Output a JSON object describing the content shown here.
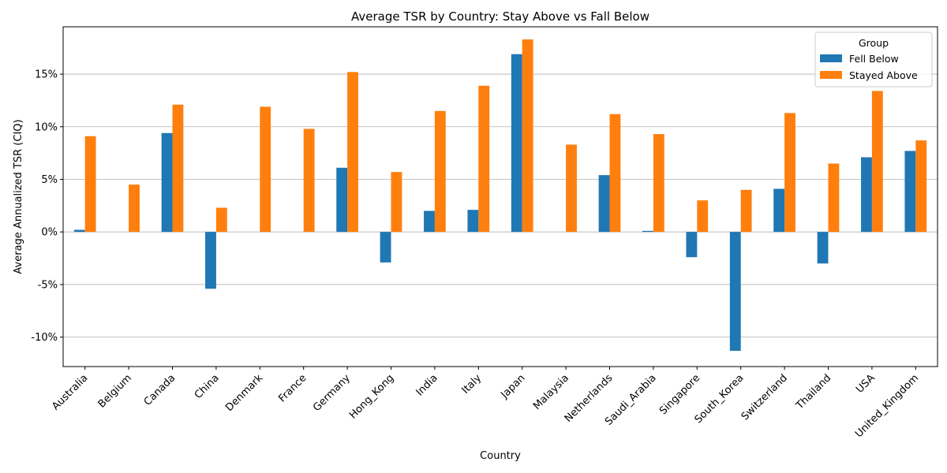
{
  "chart_data": {
    "type": "bar",
    "title": "Average TSR by Country: Stay Above vs Fall Below",
    "xlabel": "Country",
    "ylabel": "Average Annualized TSR (CIQ)",
    "categories": [
      "Australia",
      "Belgium",
      "Canada",
      "China",
      "Denmark",
      "France",
      "Germany",
      "Hong_Kong",
      "India",
      "Italy",
      "Japan",
      "Malaysia",
      "Netherlands",
      "Saudi_Arabia",
      "Singapore",
      "South_Korea",
      "Switzerland",
      "Thailand",
      "USA",
      "United_Kingdom"
    ],
    "series": [
      {
        "name": "Fell Below",
        "color": "#1f77b4",
        "values": [
          0.2,
          null,
          9.4,
          -5.4,
          null,
          null,
          6.1,
          -2.9,
          2.0,
          2.1,
          16.9,
          null,
          5.4,
          0.1,
          -2.4,
          -11.3,
          4.1,
          -3.0,
          7.1,
          7.7
        ]
      },
      {
        "name": "Stayed Above",
        "color": "#ff7f0e",
        "values": [
          9.1,
          4.5,
          12.1,
          2.3,
          11.9,
          9.8,
          15.2,
          5.7,
          11.5,
          13.9,
          18.3,
          8.3,
          11.2,
          9.3,
          3.0,
          4.0,
          11.3,
          6.5,
          13.4,
          8.7
        ]
      }
    ],
    "yticks": [
      -10,
      -5,
      0,
      5,
      10,
      15
    ],
    "ytick_labels": [
      "-10%",
      "-5%",
      "0%",
      "5%",
      "10%",
      "15%"
    ],
    "ylim": [
      -12.8,
      19.5
    ],
    "grid": "y",
    "legend": {
      "title": "Group",
      "position": "top-right"
    }
  }
}
